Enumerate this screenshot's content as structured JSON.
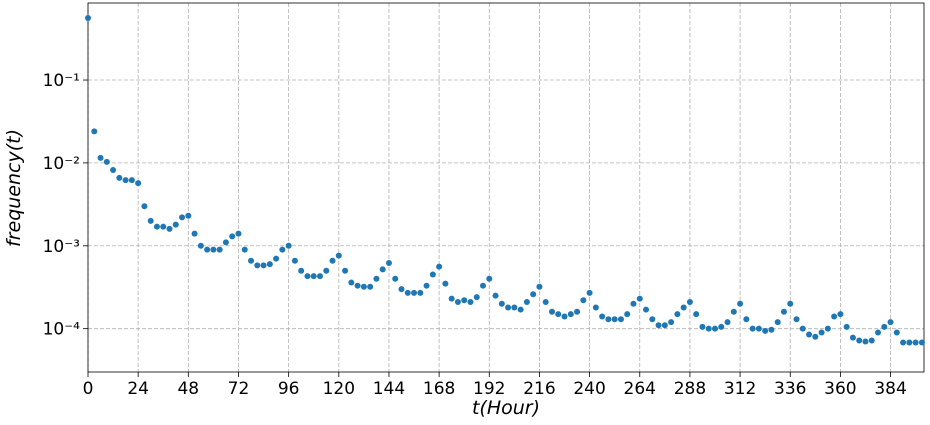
{
  "chart_data": {
    "type": "scatter",
    "xlabel": "t(Hour)",
    "ylabel": "frequency(t)",
    "color": "#1f77b4",
    "yscale": "log",
    "grid": true,
    "xlim": [
      0,
      400
    ],
    "ylim": [
      3e-05,
      0.85
    ],
    "xticks": [
      0,
      24,
      48,
      72,
      96,
      120,
      144,
      168,
      192,
      216,
      240,
      264,
      288,
      312,
      336,
      360,
      384
    ],
    "yticks": [
      {
        "value": 0.0001,
        "label": "10⁻⁴"
      },
      {
        "value": 0.001,
        "label": "10⁻³"
      },
      {
        "value": 0.01,
        "label": "10⁻²"
      },
      {
        "value": 0.1,
        "label": "10⁻¹"
      }
    ],
    "x": [
      0,
      3,
      6,
      9,
      12,
      15,
      18,
      21,
      24,
      27,
      30,
      33,
      36,
      39,
      42,
      45,
      48,
      51,
      54,
      57,
      60,
      63,
      66,
      69,
      72,
      75,
      78,
      81,
      84,
      87,
      90,
      93,
      96,
      99,
      102,
      105,
      108,
      111,
      114,
      117,
      120,
      123,
      126,
      129,
      132,
      135,
      138,
      141,
      144,
      147,
      150,
      153,
      156,
      159,
      162,
      165,
      168,
      171,
      174,
      177,
      180,
      183,
      186,
      189,
      192,
      195,
      198,
      201,
      204,
      207,
      210,
      213,
      216,
      219,
      222,
      225,
      228,
      231,
      234,
      237,
      240,
      243,
      246,
      249,
      252,
      255,
      258,
      261,
      264,
      267,
      270,
      273,
      276,
      279,
      282,
      285,
      288,
      291,
      294,
      297,
      300,
      303,
      306,
      309,
      312,
      315,
      318,
      321,
      324,
      327,
      330,
      333,
      336,
      339,
      342,
      345,
      348,
      351,
      354,
      357,
      360,
      363,
      366,
      369,
      372,
      375,
      378,
      381,
      384,
      387,
      390,
      393,
      396,
      399
    ],
    "values": [
      0.56,
      0.024,
      0.0115,
      0.0103,
      0.0082,
      0.0066,
      0.0062,
      0.0062,
      0.0057,
      0.003,
      0.002,
      0.0017,
      0.0017,
      0.0016,
      0.0018,
      0.0022,
      0.0023,
      0.0014,
      0.001,
      0.0009,
      0.0009,
      0.0009,
      0.0011,
      0.0013,
      0.0014,
      0.0009,
      0.00066,
      0.00058,
      0.00058,
      0.0006,
      0.0007,
      0.0009,
      0.001,
      0.00066,
      0.0005,
      0.00043,
      0.00043,
      0.00043,
      0.0005,
      0.00066,
      0.00076,
      0.0005,
      0.00036,
      0.00033,
      0.00032,
      0.00032,
      0.0004,
      0.00052,
      0.00062,
      0.0004,
      0.0003,
      0.00027,
      0.00027,
      0.00027,
      0.00033,
      0.00045,
      0.00056,
      0.00035,
      0.00023,
      0.00021,
      0.00022,
      0.00021,
      0.00024,
      0.00033,
      0.0004,
      0.00025,
      0.0002,
      0.00018,
      0.00018,
      0.00017,
      0.00021,
      0.00026,
      0.00032,
      0.00021,
      0.00016,
      0.00015,
      0.00014,
      0.00015,
      0.00016,
      0.00022,
      0.00027,
      0.00018,
      0.00014,
      0.00013,
      0.00013,
      0.00013,
      0.00015,
      0.0002,
      0.00023,
      0.00017,
      0.00013,
      0.00011,
      0.00011,
      0.00012,
      0.00015,
      0.00018,
      0.00021,
      0.00015,
      0.000105,
      0.0001,
      0.0001,
      0.000105,
      0.00012,
      0.00016,
      0.0002,
      0.00013,
      0.0001,
      0.0001,
      9.4e-05,
      9.7e-05,
      0.00012,
      0.00016,
      0.0002,
      0.00013,
      0.0001,
      8.5e-05,
      8e-05,
      9e-05,
      0.0001,
      0.00014,
      0.00015,
      0.000105,
      7.8e-05,
      7.2e-05,
      7e-05,
      7.2e-05,
      9e-05,
      0.000105,
      0.00012,
      9e-05,
      6.8e-05,
      6.8e-05,
      6.8e-05,
      6.8e-05
    ]
  }
}
